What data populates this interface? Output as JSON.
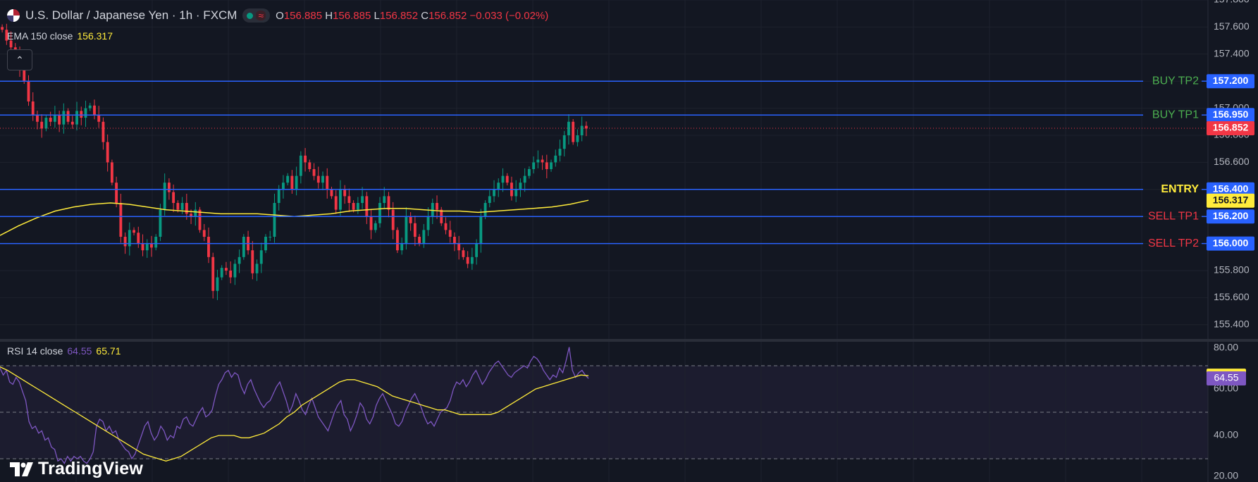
{
  "header": {
    "title": "U.S. Dollar / Japanese Yen · 1h · FXCM",
    "open_key": "O",
    "open": "156.885",
    "high_key": "H",
    "high": "156.885",
    "low_key": "L",
    "low": "156.852",
    "close_key": "C",
    "close": "156.852",
    "change": "−0.033 (−0.02%)",
    "indicator_symbol": "≈"
  },
  "ema_legend": {
    "label": "EMA 150 close",
    "value": "156.317"
  },
  "rsi_legend": {
    "label": "RSI 14 close",
    "value1": "64.55",
    "value2": "65.71"
  },
  "watermark": "TradingView",
  "colors": {
    "bg": "#131722",
    "up": "#089981",
    "down": "#f23645",
    "ema": "#ffeb3b",
    "level_line": "#2962ff",
    "rsi": "#7e57c2",
    "buy": "#4caf50",
    "sell": "#f23645",
    "entry": "#ffeb3b"
  },
  "chart_data": [
    {
      "type": "candlestick",
      "instrument": "USDJPY",
      "ylim": [
        155.3,
        157.8
      ],
      "yticks": [
        "157.800",
        "157.600",
        "157.400",
        "157.200",
        "157.000",
        "156.800",
        "156.600",
        "156.400",
        "156.200",
        "156.000",
        "155.800",
        "155.600",
        "155.400"
      ],
      "last_price": "156.852",
      "ema_value": "156.317",
      "levels": [
        {
          "label": "BUY TP2",
          "value": 157.2,
          "price_label": "157.200",
          "kind": "buy"
        },
        {
          "label": "BUY TP1",
          "value": 156.95,
          "price_label": "156.950",
          "kind": "buy"
        },
        {
          "label": "ENTRY",
          "value": 156.4,
          "price_label": "156.400",
          "kind": "entry"
        },
        {
          "label": "SELL TP1",
          "value": 156.2,
          "price_label": "156.200",
          "kind": "sell"
        },
        {
          "label": "SELL TP2",
          "value": 156.0,
          "price_label": "156.000",
          "kind": "sell"
        }
      ],
      "close": [
        157.58,
        157.5,
        157.45,
        157.4,
        157.3,
        157.2,
        157.05,
        156.95,
        156.9,
        156.85,
        156.93,
        156.9,
        156.95,
        156.88,
        156.98,
        156.9,
        156.88,
        156.98,
        156.93,
        157.0,
        157.02,
        156.95,
        156.9,
        156.75,
        156.6,
        156.45,
        156.3,
        156.05,
        155.98,
        156.1,
        156.08,
        156.0,
        155.95,
        156.0,
        155.97,
        156.05,
        156.25,
        156.45,
        156.38,
        156.3,
        156.25,
        156.3,
        156.22,
        156.2,
        156.25,
        156.1,
        156.05,
        155.9,
        155.65,
        155.75,
        155.82,
        155.8,
        155.75,
        155.85,
        155.9,
        156.05,
        155.95,
        155.78,
        155.85,
        155.95,
        156.05,
        156.05,
        156.3,
        156.4,
        156.45,
        156.5,
        156.4,
        156.5,
        156.65,
        156.6,
        156.55,
        156.5,
        156.45,
        156.5,
        156.4,
        156.35,
        156.25,
        156.4,
        156.35,
        156.3,
        156.25,
        156.3,
        156.35,
        156.2,
        156.1,
        156.15,
        156.3,
        156.35,
        156.25,
        156.1,
        155.95,
        156.0,
        156.2,
        156.15,
        156.05,
        156.0,
        156.1,
        156.2,
        156.3,
        156.25,
        156.15,
        156.1,
        156.05,
        156.0,
        155.95,
        155.9,
        155.85,
        155.9,
        156.0,
        156.2,
        156.3,
        156.35,
        156.4,
        156.45,
        156.5,
        156.45,
        156.35,
        156.4,
        156.45,
        156.5,
        156.55,
        156.6,
        156.62,
        156.6,
        156.55,
        156.6,
        156.65,
        156.7,
        156.8,
        156.9,
        156.75,
        156.8,
        156.87,
        156.85
      ],
      "ema150": [
        156.06,
        156.13,
        156.19,
        156.24,
        156.27,
        156.29,
        156.3,
        156.29,
        156.27,
        156.25,
        156.24,
        156.23,
        156.22,
        156.22,
        156.22,
        156.21,
        156.2,
        156.21,
        156.22,
        156.24,
        156.25,
        156.26,
        156.26,
        156.25,
        156.24,
        156.24,
        156.23,
        156.24,
        156.25,
        156.26,
        156.27,
        156.29,
        156.32
      ]
    },
    {
      "type": "line",
      "name": "RSI 14",
      "ylim": [
        20,
        80
      ],
      "yticks": [
        "80.00",
        "60.00",
        "40.00",
        "20.00"
      ],
      "bands": [
        70,
        50,
        30
      ],
      "last_rsi": "64.55",
      "last_ma": "65.71",
      "rsi": [
        69,
        66,
        68,
        63,
        62,
        65,
        63,
        59,
        55,
        46,
        43,
        44,
        41,
        42,
        38,
        39,
        35,
        34,
        29,
        30,
        28,
        31,
        29,
        31,
        30,
        31,
        29,
        28,
        30,
        33,
        44,
        47,
        46,
        42,
        44,
        41,
        42,
        38,
        36,
        34,
        33,
        30,
        32,
        36,
        40,
        44,
        46,
        41,
        38,
        40,
        44,
        42,
        38,
        40,
        39,
        44,
        43,
        47,
        48,
        45,
        44,
        47,
        50,
        52,
        48,
        49,
        51,
        57,
        62,
        64,
        67,
        68,
        65,
        67,
        66,
        61,
        58,
        62,
        64,
        60,
        57,
        54,
        52,
        54,
        55,
        58,
        61,
        63,
        59,
        55,
        50,
        53,
        58,
        55,
        51,
        49,
        53,
        56,
        52,
        48,
        46,
        44,
        42,
        46,
        50,
        53,
        55,
        49,
        47,
        42,
        45,
        49,
        54,
        52,
        47,
        45,
        48,
        53,
        56,
        58,
        55,
        52,
        49,
        45,
        44,
        46,
        50,
        53,
        56,
        58,
        55,
        52,
        48,
        45,
        46,
        44,
        47,
        50,
        51,
        52,
        55,
        60,
        63,
        62,
        64,
        61,
        63,
        66,
        68,
        65,
        62,
        64,
        67,
        69,
        71,
        72,
        70,
        68,
        66,
        65,
        67,
        68,
        69,
        70,
        69,
        72,
        74,
        73,
        71,
        68,
        66,
        64,
        66,
        65,
        69,
        67,
        72,
        78,
        68,
        65,
        67,
        68,
        66,
        64.55
      ],
      "ma": [
        69.5,
        68,
        66,
        64,
        62,
        60,
        58,
        56,
        54,
        52,
        50,
        48,
        46,
        44,
        42,
        40,
        38,
        36,
        34,
        32,
        31,
        30,
        29,
        30,
        31,
        33,
        35,
        37,
        39,
        40,
        40,
        40,
        39,
        39,
        40,
        41,
        43,
        45,
        48,
        50,
        53,
        55,
        57,
        59,
        61,
        63,
        64,
        64,
        63,
        62,
        61,
        59,
        57,
        56,
        55,
        54,
        53,
        52,
        51,
        51,
        50,
        49,
        49,
        49,
        49,
        49,
        50,
        52,
        54,
        56,
        58,
        60,
        61,
        62,
        63,
        64,
        65,
        66,
        65.71
      ]
    }
  ]
}
